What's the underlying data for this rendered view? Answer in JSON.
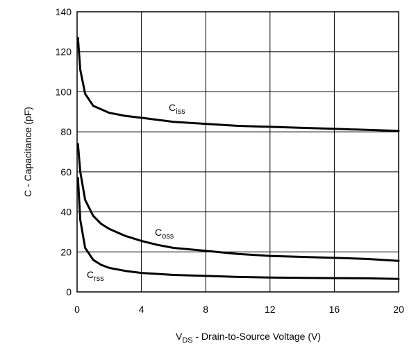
{
  "chart_data": {
    "type": "line",
    "xlabel": {
      "main": "V",
      "sub": "DS",
      "rest": " - Drain-to-Source Voltage (V)"
    },
    "ylabel": "C - Capacitance (pF)",
    "xlim": [
      0,
      20
    ],
    "ylim": [
      0,
      140
    ],
    "xticks": [
      0,
      4,
      8,
      12,
      16,
      20
    ],
    "yticks": [
      0,
      20,
      40,
      60,
      80,
      100,
      120,
      140
    ],
    "grid": true,
    "legend": "none",
    "colors": {
      "line": "#000000",
      "grid": "#000000",
      "background": "#ffffff"
    },
    "series": [
      {
        "name": "Ciss",
        "label_main": "C",
        "label_sub": "iss",
        "x": [
          0.05,
          0.2,
          0.5,
          1,
          2,
          3,
          4,
          6,
          8,
          10,
          12,
          14,
          16,
          18,
          20
        ],
        "y": [
          127,
          111,
          99,
          93,
          89.5,
          88,
          87,
          85,
          84,
          83,
          82.5,
          82,
          81.5,
          81,
          80.5
        ]
      },
      {
        "name": "Coss",
        "label_main": "C",
        "label_sub": "oss",
        "x": [
          0.05,
          0.2,
          0.5,
          1,
          1.5,
          2,
          3,
          4,
          5,
          6,
          8,
          10,
          12,
          14,
          16,
          18,
          20
        ],
        "y": [
          74,
          60,
          46,
          38,
          34,
          31.5,
          28,
          25.5,
          23.5,
          22,
          20.5,
          19,
          18,
          17.5,
          17,
          16.5,
          15.5
        ]
      },
      {
        "name": "Crss",
        "label_main": "C",
        "label_sub": "rss",
        "x": [
          0.05,
          0.2,
          0.5,
          1,
          1.5,
          2,
          3,
          4,
          6,
          8,
          10,
          12,
          14,
          16,
          18,
          20
        ],
        "y": [
          57,
          36,
          22,
          16,
          13.5,
          12,
          10.5,
          9.5,
          8.5,
          8,
          7.5,
          7.2,
          7,
          6.9,
          6.8,
          6.5
        ]
      }
    ]
  }
}
